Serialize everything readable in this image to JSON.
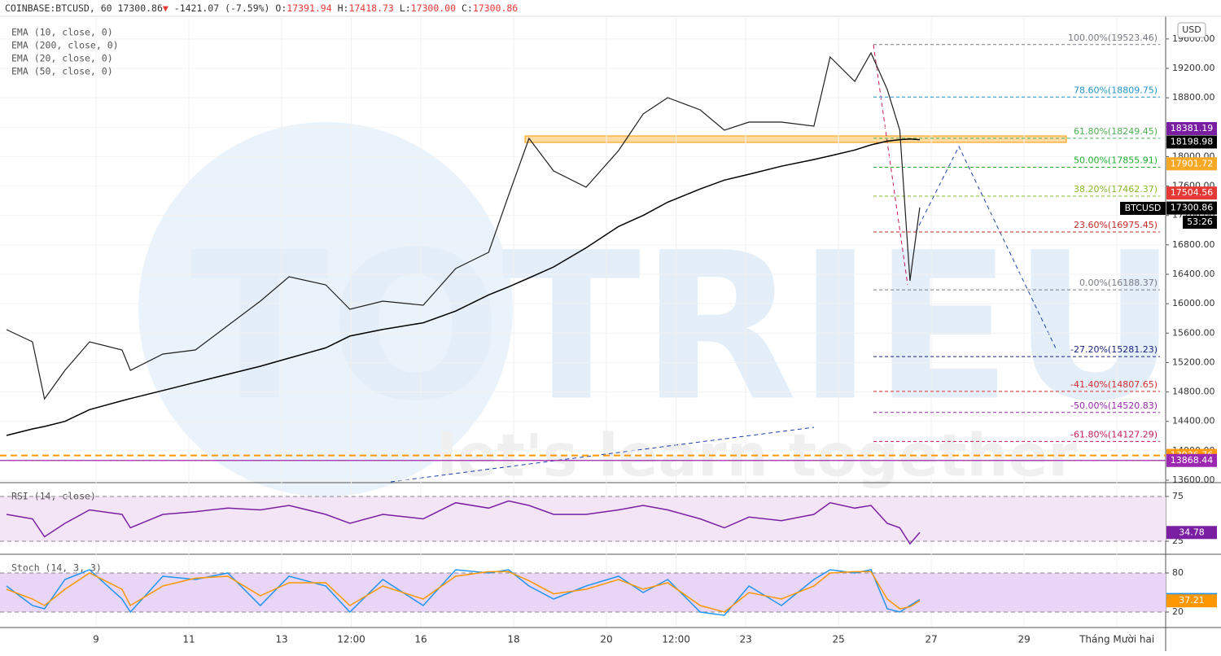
{
  "header": {
    "symbol": "COINBASE:BTCUSD, 60",
    "last": "17300.86",
    "arrow": "▼",
    "change": "-1421.07 (-7.59%)",
    "ohlc": [
      {
        "label": "O:",
        "value": "17391.94"
      },
      {
        "label": "H:",
        "value": "17418.73"
      },
      {
        "label": "L:",
        "value": "17300.00"
      },
      {
        "label": "C:",
        "value": "17300.86"
      }
    ]
  },
  "watermark": {
    "title": "TOTRIEU",
    "tagline": "let's learn together"
  },
  "chart_data": [
    {
      "type": "line",
      "currency": "USD",
      "symbol_tag": "BTCUSD",
      "countdown": "53:26",
      "indicators": [
        "EMA (10, close, 0)",
        "EMA (200, close, 0)",
        "EMA (20, close, 0)",
        "EMA (50, close, 0)"
      ],
      "x": [
        7.07,
        7.63,
        7.89,
        8.33,
        8.86,
        9.56,
        9.74,
        10.44,
        11.14,
        11.84,
        12.54,
        13.16,
        13.95,
        14.47,
        15.18,
        16.05,
        16.75,
        17.46,
        17.89,
        18.33,
        18.86,
        19.56,
        20.26,
        20.79,
        21.32,
        22.02,
        22.54,
        23.07,
        23.77,
        24.47,
        24.82,
        25.35,
        25.7,
        26.05,
        26.32,
        26.54,
        26.75
      ],
      "series": [
        {
          "color": "#1f1f1f",
          "values": [
            15647,
            15481,
            14706,
            15094,
            15481,
            15371,
            15094,
            15315,
            15371,
            15703,
            16035,
            16367,
            16256,
            15924,
            16035,
            15979,
            16477,
            16699,
            17473,
            18248,
            17805,
            17584,
            18082,
            18580,
            18801,
            18635,
            18359,
            18469,
            18469,
            18414,
            19355,
            19023,
            19410,
            18912,
            18359,
            16311,
            17307
          ]
        },
        {
          "color": "#000000",
          "values": [
            14209,
            14297,
            14330,
            14400,
            14560,
            14680,
            14710,
            14820,
            14930,
            15040,
            15150,
            15260,
            15400,
            15560,
            15650,
            15740,
            15900,
            16120,
            16230,
            16350,
            16500,
            16760,
            17050,
            17200,
            17380,
            17560,
            17680,
            17760,
            17870,
            17960,
            18010,
            18090,
            18160,
            18210,
            18230,
            18240,
            18230
          ]
        }
      ],
      "xlim": [
        6.93,
        32.05
      ],
      "xticks": [
        9,
        11,
        13,
        {
          "value": 14.5,
          "label": "12:00"
        },
        16,
        18,
        20,
        {
          "value": 21.5,
          "label": "12:00"
        },
        23,
        25,
        27,
        29,
        {
          "value": 31,
          "label": "Tháng Mười hai"
        }
      ],
      "ylim": [
        13578,
        19886
      ],
      "yticks": [
        {
          "value": 13600,
          "label": "13600.00"
        },
        {
          "value": 14000,
          "label": "14000.00"
        },
        {
          "value": 14400,
          "label": "14400.00"
        },
        {
          "value": 14800,
          "label": "14800.00"
        },
        {
          "value": 15200,
          "label": "15200.00"
        },
        {
          "value": 15600,
          "label": "15600.00"
        },
        {
          "value": 16000,
          "label": "16000.00"
        },
        {
          "value": 16400,
          "label": "16400.00"
        },
        {
          "value": 16800,
          "label": "16800.00"
        },
        {
          "value": 17200,
          "label": "17200.00"
        },
        {
          "value": 17600,
          "label": "17600.00"
        },
        {
          "value": 18000,
          "label": "18000.00"
        },
        {
          "value": 18400,
          "label": "18400.00"
        },
        {
          "value": 18800,
          "label": "18800.00"
        },
        {
          "value": 19200,
          "label": "19200.00"
        },
        {
          "value": 19600,
          "label": "19600.00"
        }
      ],
      "grid": true,
      "fib_levels": [
        {
          "value": 19523.46,
          "label": "100.00%(19523.46)",
          "color": "#787b86"
        },
        {
          "value": 18809.75,
          "label": "78.60%(18809.75)",
          "color": "#2196c8"
        },
        {
          "value": 18249.45,
          "label": "61.80%(18249.45)",
          "color": "#4caf50"
        },
        {
          "value": 17855.91,
          "label": "50.00%(17855.91)",
          "color": "#1fae2f"
        },
        {
          "value": 17462.37,
          "label": "38.20%(17462.37)",
          "color": "#8bb82a"
        },
        {
          "value": 16975.45,
          "label": "23.60%(16975.45)",
          "color": "#c62828"
        },
        {
          "value": 16188.37,
          "label": "0.00%(16188.37)",
          "color": "#787b86"
        },
        {
          "value": 15281.23,
          "label": "-27.20%(15281.23)",
          "color": "#1a237e"
        },
        {
          "value": 14807.65,
          "label": "-41.40%(14807.65)",
          "color": "#d32f2f"
        },
        {
          "value": 14520.83,
          "label": "-50.00%(14520.83)",
          "color": "#9c27b0"
        },
        {
          "value": 14127.29,
          "label": "-61.80%(14127.29)",
          "color": "#c2185b"
        }
      ],
      "price_tags": [
        {
          "value": 18381.19,
          "color": "#7b1fa2"
        },
        {
          "value": 18198.98,
          "color": "#000000"
        },
        {
          "value": 17901.72,
          "color": "#f9a825"
        },
        {
          "value": 17504.56,
          "color": "#e53935"
        },
        {
          "value": 17300.86,
          "color": "#000000"
        },
        {
          "value": 13936.76,
          "color": "#ff9800",
          "line": "dashed"
        },
        {
          "value": 13868.44,
          "color": "#9c27b0",
          "line": "solid"
        }
      ]
    },
    {
      "type": "line",
      "title": "RSI (14, close)",
      "series": [
        {
          "color": "#7b1fa2",
          "values": [
            55,
            50,
            30,
            45,
            60,
            55,
            40,
            55,
            58,
            62,
            60,
            65,
            55,
            45,
            55,
            50,
            68,
            62,
            70,
            65,
            55,
            55,
            60,
            65,
            60,
            50,
            40,
            52,
            48,
            55,
            68,
            62,
            65,
            45,
            40,
            22,
            34.78
          ]
        }
      ],
      "ylim": [
        11.4,
        87.7
      ],
      "yticks": [
        25,
        75
      ],
      "tag_color": "#7b1fa2"
    },
    {
      "type": "line",
      "title": "Stoch (14, 3, 3)",
      "series": [
        {
          "color": "#2196f3",
          "values": [
            60,
            30,
            25,
            70,
            85,
            40,
            20,
            75,
            70,
            80,
            30,
            75,
            60,
            20,
            70,
            30,
            85,
            80,
            85,
            60,
            40,
            60,
            75,
            50,
            70,
            20,
            15,
            60,
            30,
            70,
            85,
            80,
            85,
            25,
            20,
            30,
            39.3
          ]
        },
        {
          "color": "#ff9800",
          "values": [
            55,
            40,
            30,
            55,
            80,
            55,
            30,
            60,
            72,
            75,
            45,
            65,
            65,
            30,
            60,
            40,
            75,
            82,
            82,
            68,
            48,
            55,
            70,
            55,
            65,
            30,
            20,
            50,
            40,
            60,
            80,
            82,
            82,
            40,
            25,
            28,
            37.21
          ]
        }
      ],
      "ylim": [
        -2.5,
        105
      ],
      "yticks": [
        20,
        80
      ]
    }
  ]
}
